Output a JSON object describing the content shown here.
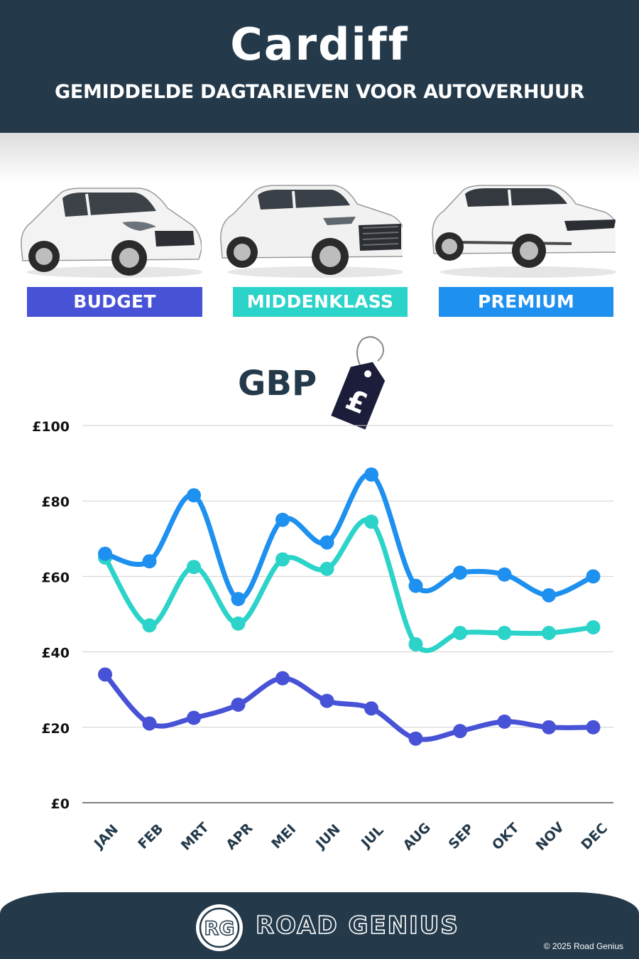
{
  "header": {
    "city": "Cardiff",
    "subtitle": "GEMIDDELDE DAGTARIEVEN VOOR AUTOVERHUUR"
  },
  "categories": [
    {
      "label": "BUDGET",
      "color": "#4752d6"
    },
    {
      "label": "MIDDENKLASS",
      "color": "#2bd3c9"
    },
    {
      "label": "PREMIUM",
      "color": "#1e90ef"
    }
  ],
  "currency": {
    "label": "GBP",
    "tag_symbol": "£"
  },
  "chart_data": {
    "type": "line",
    "categories": [
      "JAN",
      "FEB",
      "MRT",
      "APR",
      "MEI",
      "JUN",
      "JUL",
      "AUG",
      "SEP",
      "OKT",
      "NOV",
      "DEC"
    ],
    "y_tick_labels": [
      "£0",
      "£20",
      "£40",
      "£60",
      "£80",
      "£100"
    ],
    "ylim": [
      0,
      100
    ],
    "grid": true,
    "series": [
      {
        "name": "BUDGET",
        "color": "#4752d6",
        "values": [
          34,
          21,
          22.5,
          26,
          33,
          27,
          25,
          17,
          19,
          21.5,
          20,
          20
        ]
      },
      {
        "name": "MIDDENKLASS",
        "color": "#2bd3c9",
        "values": [
          65,
          47,
          62.5,
          47.5,
          64.5,
          62,
          74.5,
          42,
          45,
          45,
          45,
          46.5
        ]
      },
      {
        "name": "PREMIUM",
        "color": "#1e90ef",
        "values": [
          66,
          64,
          81.5,
          54,
          75,
          69,
          87,
          57.5,
          61,
          60.5,
          55,
          60
        ]
      }
    ]
  },
  "footer": {
    "logo_text": "RG",
    "brand": "ROAD GENIUS",
    "copyright": "© 2025 Road Genius"
  }
}
